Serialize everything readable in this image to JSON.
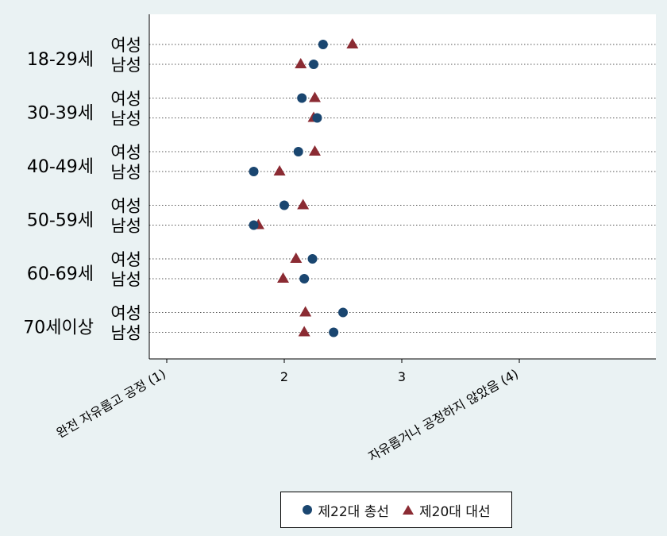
{
  "chart_data": {
    "type": "scatter",
    "xlim": [
      1,
      4
    ],
    "x_ticks": [
      {
        "value": 1,
        "label": "완전 자유롭고 공정 (1)"
      },
      {
        "value": 2,
        "label": "2"
      },
      {
        "value": 3,
        "label": "3"
      },
      {
        "value": 4,
        "label": "자유롭거나 공정하지 않았음 (4)"
      }
    ],
    "groups": [
      {
        "label": "18-29세",
        "rows": [
          {
            "label": "여성",
            "values": [
              2.33,
              2.58
            ]
          },
          {
            "label": "남성",
            "values": [
              2.25,
              2.14
            ]
          }
        ]
      },
      {
        "label": "30-39세",
        "rows": [
          {
            "label": "여성",
            "values": [
              2.15,
              2.26
            ]
          },
          {
            "label": "남성",
            "values": [
              2.28,
              2.25
            ]
          }
        ]
      },
      {
        "label": "40-49세",
        "rows": [
          {
            "label": "여성",
            "values": [
              2.12,
              2.26
            ]
          },
          {
            "label": "남성",
            "values": [
              1.74,
              1.96
            ]
          }
        ]
      },
      {
        "label": "50-59세",
        "rows": [
          {
            "label": "여성",
            "values": [
              2.0,
              2.16
            ]
          },
          {
            "label": "남성",
            "values": [
              1.74,
              1.78
            ]
          }
        ]
      },
      {
        "label": "60-69세",
        "rows": [
          {
            "label": "여성",
            "values": [
              2.24,
              2.1
            ]
          },
          {
            "label": "남성",
            "values": [
              2.17,
              1.99
            ]
          }
        ]
      },
      {
        "label": "70세이상",
        "rows": [
          {
            "label": "여성",
            "values": [
              2.5,
              2.18
            ]
          },
          {
            "label": "남성",
            "values": [
              2.42,
              2.17
            ]
          }
        ]
      }
    ],
    "series": [
      {
        "name": "제22대 총선",
        "marker": "circle",
        "color": "#1a4670"
      },
      {
        "name": "제20대 대선",
        "marker": "triangle",
        "color": "#8b2b33"
      }
    ],
    "grid": "dotted horizontal",
    "legend": "bottom"
  }
}
